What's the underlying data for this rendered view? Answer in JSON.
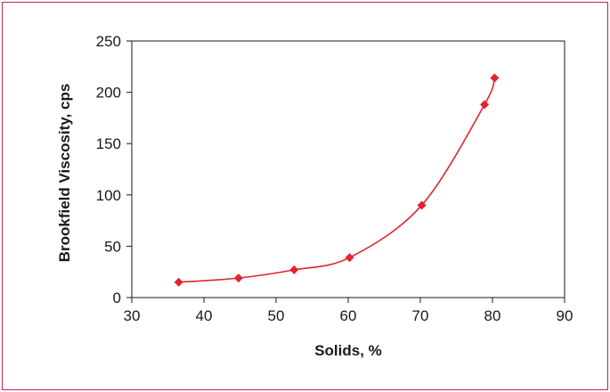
{
  "chart_data": {
    "type": "scatter",
    "title": "",
    "xlabel": "Solids, %",
    "ylabel": "Brookfield Viscosity, cps",
    "xlim": [
      30,
      90
    ],
    "ylim": [
      0,
      250
    ],
    "xticks": [
      30,
      40,
      50,
      60,
      70,
      80,
      90
    ],
    "yticks": [
      0,
      50,
      100,
      150,
      200,
      250
    ],
    "x_tick_labels": [
      "30",
      "40",
      "50",
      "60",
      "70",
      "80",
      "90"
    ],
    "y_tick_labels": [
      "0",
      "50",
      "100",
      "150",
      "200",
      "250"
    ],
    "grid": false,
    "legend": "none",
    "series": [
      {
        "marker": "diamond",
        "color": "#e0252f",
        "x": [
          36.5,
          44.8,
          52.5,
          60.2,
          70.2,
          78.9,
          80.3
        ],
        "y": [
          15,
          19,
          27,
          39,
          90,
          188,
          214
        ],
        "trendline": "smooth"
      }
    ]
  },
  "colors": {
    "frame_border": "#b3265a",
    "axis": "#1a1a1a",
    "series": "#e0252f"
  }
}
